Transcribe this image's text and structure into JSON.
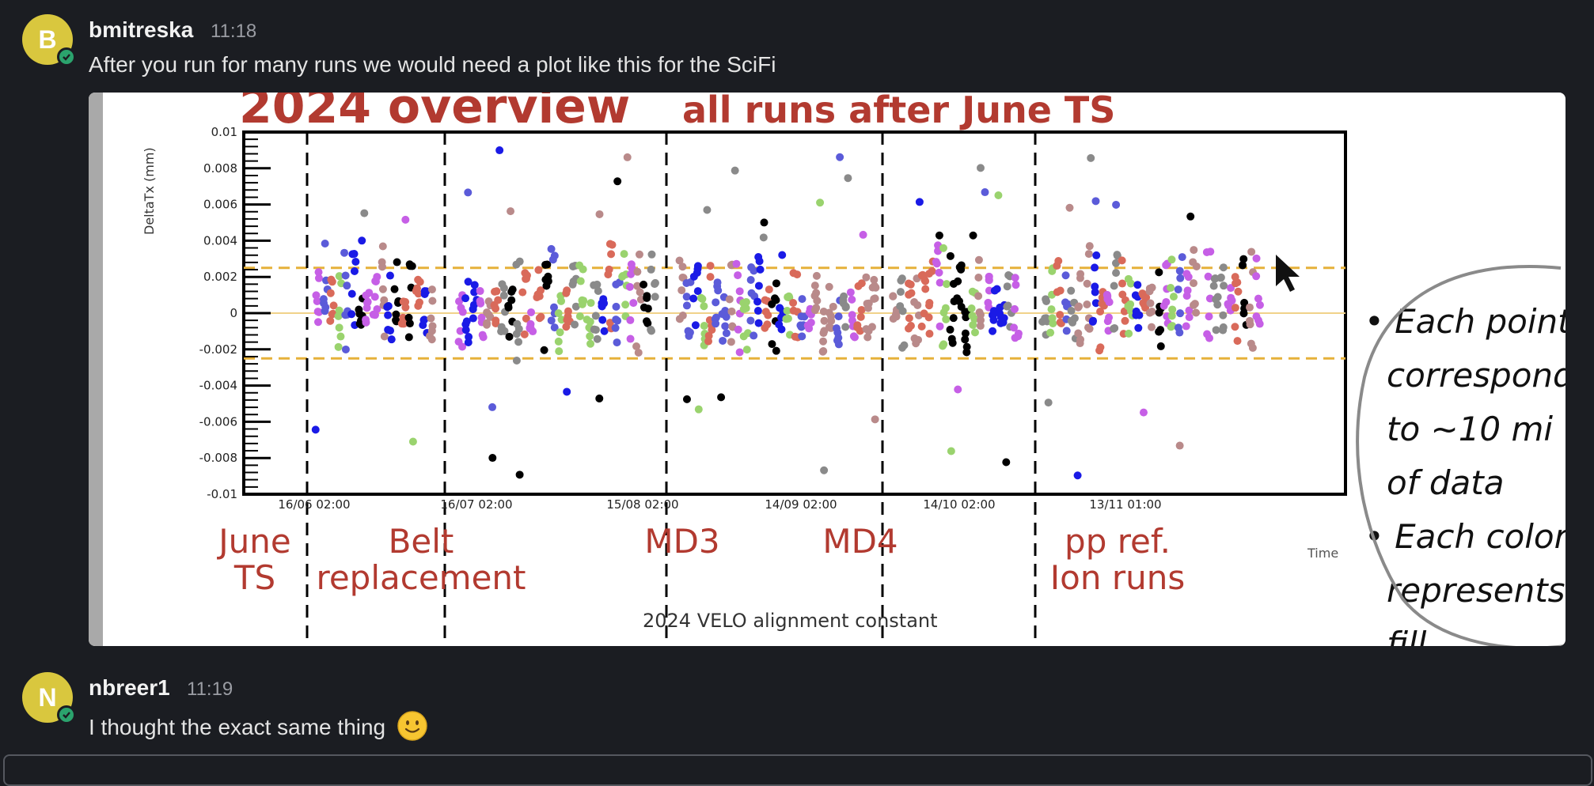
{
  "messages": [
    {
      "avatar_initial": "B",
      "username": "bmitreska",
      "time": "11:18",
      "text": "After you run for many runs we would need a plot like this for the SciFi",
      "status_icon": "online-check-icon",
      "attachment": {
        "title_main": "2024 overview",
        "title_sub": "all runs after June TS",
        "caption": "2024 VELO alignment constant",
        "period_labels": [
          {
            "line1": "June",
            "line2": "TS"
          },
          {
            "line1": "Belt",
            "line2": "replacement"
          },
          {
            "line1": "MD3",
            "line2": ""
          },
          {
            "line1": "MD4",
            "line2": ""
          },
          {
            "line1": "pp ref.",
            "line2": "Ion runs"
          }
        ],
        "notes": [
          "• Each point",
          "correspond",
          "to ~10 mi",
          "of data",
          "• Each color",
          "represents",
          "fill"
        ],
        "chart_data": {
          "type": "scatter",
          "ylabel": "DeltaTx (mm)",
          "xlabel": "Time",
          "ylim": [
            -0.01,
            0.01
          ],
          "y_ticks": [
            "0.01",
            "0.008",
            "0.006",
            "0.004",
            "0.002",
            "0",
            "-0.002",
            "-0.004",
            "-0.006",
            "-0.008",
            "-0.01"
          ],
          "x_ticks": [
            "16/06 02:00",
            "16/07 02:00",
            "15/08 02:00",
            "14/09 02:00",
            "14/10 02:00",
            "13/11 01:00"
          ],
          "tolerance_band": [
            -0.0025,
            0.0025
          ],
          "series_colors": [
            "#1a1ae6",
            "#000000",
            "#d96a5a",
            "#c65fe6",
            "#8a8a8a",
            "#9ad36e",
            "#b98a8a",
            "#5b5bd9"
          ],
          "approximate": true
        }
      }
    },
    {
      "avatar_initial": "N",
      "username": "nbreer1",
      "time": "11:19",
      "text": "I thought the exact same thing",
      "emoji": "slightly-smiling-face-icon",
      "status_icon": "online-check-icon"
    }
  ]
}
